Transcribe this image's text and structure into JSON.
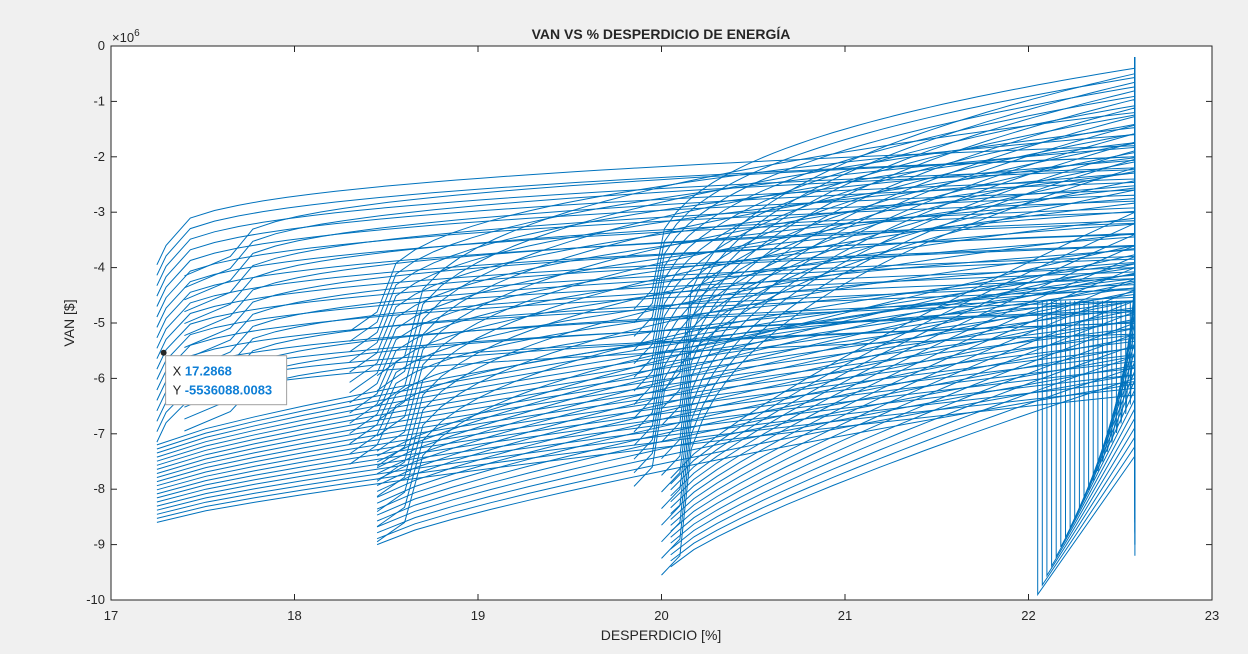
{
  "chart_data": {
    "type": "line",
    "title": "VAN VS % DESPERDICIO DE ENERGÍA",
    "xlabel": "DESPERDICIO [%]",
    "ylabel": "VAN [$]",
    "xlim": [
      17,
      23
    ],
    "ylim": [
      -10,
      0
    ],
    "exponent_label": "×10",
    "exponent_power": "6",
    "xticks": [
      "17",
      "18",
      "19",
      "20",
      "21",
      "22",
      "23"
    ],
    "yticks": [
      "0",
      "-1",
      "-2",
      "-3",
      "-4",
      "-5",
      "-6",
      "-7",
      "-8",
      "-9",
      "-10"
    ],
    "grid": false,
    "line_color": "#0072bd",
    "x_max": 22.58,
    "families": [
      {
        "x_start": 17.25,
        "x_knee": 17.3,
        "y_knee_range": [
          -6.8,
          -3.6
        ],
        "y_end_range": [
          -5.2,
          -1.8
        ],
        "count": 18
      },
      {
        "x_start": 17.4,
        "x_knee": 17.65,
        "y_knee_range": [
          -6.6,
          -3.8
        ],
        "y_end_range": [
          -5.0,
          -2.0
        ],
        "count": 14
      },
      {
        "x_start": 18.3,
        "x_knee": 18.45,
        "y_knee_range": [
          -7.2,
          -4.8
        ],
        "y_end_range": [
          -4.6,
          -1.6
        ],
        "count": 14
      },
      {
        "x_start": 18.45,
        "x_knee": 18.6,
        "y_knee_range": [
          -8.6,
          -5.6
        ],
        "y_end_range": [
          -4.2,
          -1.2
        ],
        "count": 12
      },
      {
        "x_start": 19.85,
        "x_knee": 19.95,
        "y_knee_range": [
          -7.6,
          -4.4
        ],
        "y_end_range": [
          -2.6,
          -0.4
        ],
        "count": 14
      },
      {
        "x_start": 20.0,
        "x_knee": 20.1,
        "y_knee_range": [
          -9.2,
          -5.9
        ],
        "y_end_range": [
          -2.2,
          -0.5
        ],
        "count": 12
      }
    ],
    "lower_families": [
      {
        "x_start": 17.25,
        "y_start_range": [
          -8.6,
          -7.2
        ],
        "y_end_range": [
          -6.3,
          -4.0
        ],
        "count": 20
      },
      {
        "x_start": 18.45,
        "y_start_range": [
          -9.0,
          -7.4
        ],
        "y_end_range": [
          -6.1,
          -3.6
        ],
        "count": 16
      },
      {
        "x_start": 20.05,
        "y_start_range": [
          -9.4,
          -7.8
        ],
        "y_end_range": [
          -6.0,
          -3.0
        ],
        "count": 16
      }
    ],
    "drop_family": {
      "x_range": [
        22.05,
        22.58
      ],
      "y_bottom_range": [
        -9.9,
        -6.3
      ],
      "count": 22
    },
    "datatip": {
      "x": 17.2868,
      "y": -5.5360880083,
      "x_key": "X",
      "y_key": "Y",
      "x_label": "17.2868",
      "y_label": "-5536088.0083"
    }
  }
}
